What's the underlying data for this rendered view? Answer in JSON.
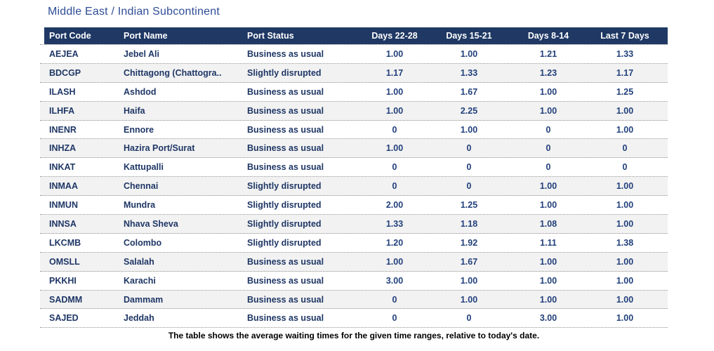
{
  "colors": {
    "header_bg": "#1f3864",
    "header_text": "#ffffff",
    "title_text": "#2e4d96",
    "body_text": "#1f3766",
    "value_text": "#22407c",
    "alt_row_bg": "#f2f2f2",
    "divider": "#909090",
    "caption_text": "#000000"
  },
  "chart_data": {
    "type": "table",
    "title": "Middle East / Indian Subcontinent",
    "caption": "The table shows the average waiting times for the given time ranges, relative to today's date.",
    "columns": [
      "Port Code",
      "Port Name",
      "Port Status",
      "Days 22-28",
      "Days 15-21",
      "Days 8-14",
      "Last 7 Days"
    ],
    "rows": [
      [
        "AEJEA",
        "Jebel Ali",
        "Business as usual",
        "1.00",
        "1.00",
        "1.21",
        "1.33"
      ],
      [
        "BDCGP",
        "Chittagong (Chattogra..",
        "Slightly disrupted",
        "1.17",
        "1.33",
        "1.23",
        "1.17"
      ],
      [
        "ILASH",
        "Ashdod",
        "Business as usual",
        "1.00",
        "1.67",
        "1.00",
        "1.25"
      ],
      [
        "ILHFA",
        "Haifa",
        "Business as usual",
        "1.00",
        "2.25",
        "1.00",
        "1.00"
      ],
      [
        "INENR",
        "Ennore",
        "Business as usual",
        "0",
        "1.00",
        "0",
        "1.00"
      ],
      [
        "INHZA",
        "Hazira Port/Surat",
        "Business as usual",
        "1.00",
        "0",
        "0",
        "0"
      ],
      [
        "INKAT",
        "Kattupalli",
        "Business as usual",
        "0",
        "0",
        "0",
        "0"
      ],
      [
        "INMAA",
        "Chennai",
        "Slightly disrupted",
        "0",
        "0",
        "1.00",
        "1.00"
      ],
      [
        "INMUN",
        "Mundra",
        "Slightly disrupted",
        "2.00",
        "1.25",
        "1.00",
        "1.00"
      ],
      [
        "INNSA",
        "Nhava Sheva",
        "Slightly disrupted",
        "1.33",
        "1.18",
        "1.08",
        "1.00"
      ],
      [
        "LKCMB",
        "Colombo",
        "Slightly disrupted",
        "1.20",
        "1.92",
        "1.11",
        "1.38"
      ],
      [
        "OMSLL",
        "Salalah",
        "Business as usual",
        "1.00",
        "1.67",
        "1.00",
        "1.00"
      ],
      [
        "PKKHI",
        "Karachi",
        "Business as usual",
        "3.00",
        "1.00",
        "1.00",
        "1.00"
      ],
      [
        "SADMM",
        "Dammam",
        "Business as usual",
        "0",
        "1.00",
        "1.00",
        "1.00"
      ],
      [
        "SAJED",
        "Jeddah",
        "Business as usual",
        "0",
        "0",
        "3.00",
        "1.00"
      ]
    ]
  }
}
